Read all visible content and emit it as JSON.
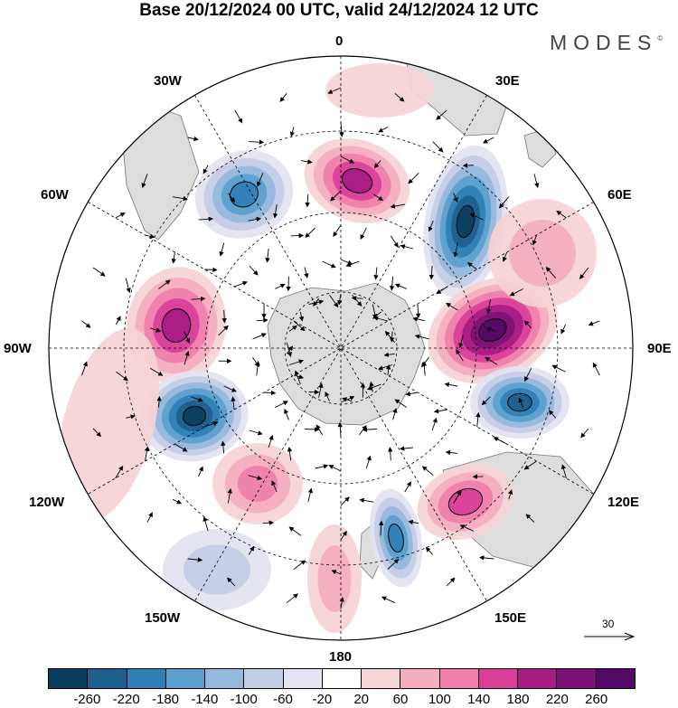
{
  "title": "Base 20/12/2024 00 UTC, valid 24/12/2024 12 UTC",
  "logo": {
    "text": "MODES",
    "mark": "©"
  },
  "longitude_labels": {
    "top": "0",
    "bottom": "180",
    "left": "90W",
    "right": "90E",
    "top_left_1": "30W",
    "top_left_2": "60W",
    "bottom_left_1": "120W",
    "bottom_left_2": "150W",
    "top_right_1": "30E",
    "top_right_2": "60E",
    "bottom_right_1": "120E",
    "bottom_right_2": "150E"
  },
  "reference_vector": {
    "label": "30"
  },
  "colorbar": {
    "labels": [
      "-260",
      "-220",
      "-180",
      "-140",
      "-100",
      "-60",
      "-20",
      "20",
      "60",
      "100",
      "140",
      "180",
      "220",
      "260"
    ],
    "colors": [
      "#0b3d5c",
      "#1d5f8e",
      "#2f7fb6",
      "#5b9fcd",
      "#93b9dc",
      "#c3cde6",
      "#e3e3f1",
      "#ffffff",
      "#f6d3d6",
      "#f4aec0",
      "#ef7fab",
      "#d83f98",
      "#a61c84",
      "#7c1275",
      "#520a66"
    ]
  },
  "map_colors": {
    "land": "#dddddd",
    "border": "#777777"
  }
}
